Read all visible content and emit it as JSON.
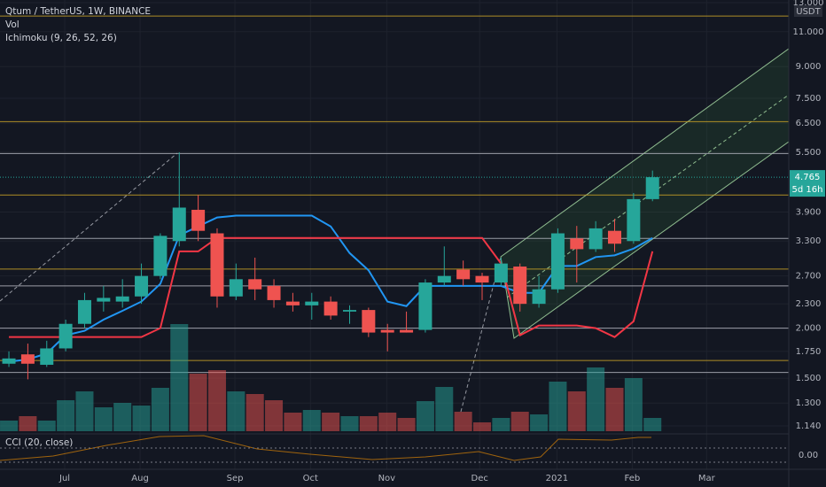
{
  "chart_data": {
    "type": "candlestick",
    "title": "Qtum / TetherUS, 1W, BINANCE",
    "indicators": [
      "Vol",
      "Ichimoku (9, 26, 52, 26)"
    ],
    "oscillator": "CCI (20, close)",
    "oscillator_tick": {
      "value": 0,
      "label": "0.00"
    },
    "currency": "USDT",
    "countdown": "5d 16h",
    "log_scale": true,
    "grid": true,
    "ylim": [
      1.1,
      13.2
    ],
    "yticks": [
      {
        "value": 13,
        "label": "13.000"
      },
      {
        "value": 11,
        "label": "11.000"
      },
      {
        "value": 9,
        "label": "9.000"
      },
      {
        "value": 7.5,
        "label": "7.500"
      },
      {
        "value": 6.5,
        "label": "6.500"
      },
      {
        "value": 5.5,
        "label": "5.500"
      },
      {
        "value": 3.9,
        "label": "3.900"
      },
      {
        "value": 3.3,
        "label": "3.300"
      },
      {
        "value": 2.7,
        "label": "2.700"
      },
      {
        "value": 2.3,
        "label": "2.300"
      },
      {
        "value": 2,
        "label": "2.000"
      },
      {
        "value": 1.75,
        "label": "1.750"
      },
      {
        "value": 1.5,
        "label": "1.500"
      },
      {
        "value": 1.3,
        "label": "1.300"
      },
      {
        "value": 1.14,
        "label": "1.140"
      }
    ],
    "xlim": [
      -0.47,
      41.2
    ],
    "xticks": [
      {
        "value": 2.95,
        "label": "Jul"
      },
      {
        "value": 6.93,
        "label": "Aug"
      },
      {
        "value": 11.94,
        "label": "Sep"
      },
      {
        "value": 15.93,
        "label": "Oct"
      },
      {
        "value": 19.96,
        "label": "Nov"
      },
      {
        "value": 24.87,
        "label": "Dec"
      },
      {
        "value": 28.95,
        "label": "2021"
      },
      {
        "value": 32.93,
        "label": "Feb"
      },
      {
        "value": 36.86,
        "label": "Mar"
      }
    ],
    "candles": {
      "up_color": "#26a69a",
      "down_color": "#ef5350",
      "x": [
        0,
        1,
        2,
        3,
        4,
        5,
        6,
        7,
        8,
        9,
        10,
        11,
        12,
        13,
        14,
        15,
        16,
        17,
        18,
        19,
        20,
        21,
        22,
        23,
        24,
        25,
        26,
        27,
        28,
        29,
        30,
        31,
        32,
        33,
        34
      ],
      "open": [
        1.63,
        1.72,
        1.62,
        1.78,
        2.05,
        2.33,
        2.33,
        2.4,
        2.7,
        3.3,
        3.95,
        3.45,
        2.4,
        2.65,
        2.55,
        2.33,
        2.28,
        2.33,
        2.2,
        2.22,
        1.98,
        1.98,
        1.98,
        2.6,
        2.8,
        2.7,
        2.6,
        2.85,
        2.3,
        2.5,
        3.35,
        3.15,
        3.5,
        3.3,
        4.2
      ],
      "high": [
        1.75,
        1.83,
        1.86,
        2.1,
        2.45,
        2.55,
        2.65,
        2.9,
        3.45,
        5.5,
        4.3,
        3.55,
        2.9,
        3.0,
        2.65,
        2.45,
        2.45,
        2.4,
        2.28,
        2.25,
        2.05,
        2.2,
        2.65,
        3.2,
        2.95,
        2.75,
        3.0,
        2.9,
        2.7,
        3.55,
        3.6,
        3.7,
        3.75,
        4.35,
        4.95
      ],
      "low": [
        1.6,
        1.49,
        1.6,
        1.75,
        2.0,
        2.2,
        2.25,
        2.3,
        2.65,
        3.2,
        3.3,
        2.25,
        2.35,
        2.35,
        2.25,
        2.2,
        2.1,
        2.1,
        2.05,
        1.9,
        1.75,
        1.95,
        1.95,
        2.55,
        2.55,
        2.35,
        2.55,
        2.2,
        2.25,
        2.45,
        2.6,
        3.1,
        3.1,
        3.25,
        4.15
      ],
      "close": [
        1.68,
        1.63,
        1.78,
        2.05,
        2.35,
        2.38,
        2.4,
        2.7,
        3.4,
        4.0,
        3.5,
        2.4,
        2.65,
        2.5,
        2.35,
        2.28,
        2.33,
        2.15,
        2.22,
        1.95,
        1.95,
        1.95,
        2.6,
        2.7,
        2.65,
        2.6,
        2.9,
        2.3,
        2.5,
        3.45,
        3.15,
        3.55,
        3.25,
        4.2,
        4.765
      ]
    },
    "volume": {
      "ylim": [
        0,
        200
      ],
      "values": [
        12,
        17,
        12,
        35,
        45,
        27,
        32,
        29,
        49,
        121,
        65,
        69,
        45,
        42,
        35,
        21,
        24,
        21,
        17,
        17,
        21,
        15,
        34,
        50,
        22,
        10,
        15,
        22,
        19,
        56,
        45,
        72,
        49,
        60,
        15
      ]
    },
    "lines": [
      {
        "color": "#2196f3",
        "values": [
          1.65,
          1.67,
          1.73,
          1.92,
          1.97,
          2.1,
          2.21,
          2.33,
          2.58,
          3.41,
          3.59,
          3.78,
          3.82,
          3.82,
          3.82,
          3.82,
          3.82,
          3.59,
          3.08,
          2.79,
          2.33,
          2.27,
          2.55,
          2.55,
          2.55,
          2.55,
          2.55,
          2.45,
          2.45,
          2.86,
          2.86,
          3.01,
          3.04,
          3.16,
          3.36
        ]
      },
      {
        "color": "#f23645",
        "values": [
          1.9,
          1.9,
          1.9,
          1.9,
          1.9,
          1.9,
          1.9,
          1.9,
          2.0,
          3.11,
          3.11,
          3.36,
          3.36,
          3.36,
          3.36,
          3.36,
          3.36,
          3.36,
          3.36,
          3.36,
          3.36,
          3.36,
          3.36,
          3.36,
          3.36,
          3.36,
          2.9,
          1.92,
          2.03,
          2.03,
          2.03,
          2.0,
          1.9,
          2.08,
          3.11
        ]
      }
    ],
    "levels": [
      {
        "value": 12.04,
        "color": "#c9a227"
      },
      {
        "value": 6.56,
        "color": "#c9a227"
      },
      {
        "value": 4.3,
        "color": "#c9a227"
      },
      {
        "value": 2.81,
        "color": "#c9a227"
      },
      {
        "value": 1.66,
        "color": "#c9a227"
      },
      {
        "value": 5.46,
        "color": "#b2b5be"
      },
      {
        "value": 3.35,
        "color": "#b2b5be"
      },
      {
        "value": 2.55,
        "color": "#b2b5be"
      },
      {
        "value": 2.0,
        "color": "#b2b5be"
      },
      {
        "value": 1.55,
        "color": "#b2b5be"
      }
    ]
  }
}
